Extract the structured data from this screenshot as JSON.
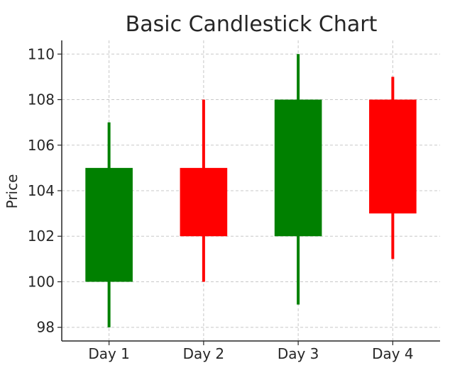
{
  "chart_data": {
    "type": "candlestick",
    "title": "Basic Candlestick Chart",
    "xlabel": "",
    "ylabel": "Price",
    "categories": [
      "Day 1",
      "Day 2",
      "Day 3",
      "Day 4"
    ],
    "open": [
      100,
      105,
      102,
      108
    ],
    "high": [
      107,
      108,
      110,
      109
    ],
    "low": [
      98,
      100,
      99,
      101
    ],
    "close": [
      105,
      102,
      108,
      103
    ],
    "ylim": [
      97.4,
      110.6
    ],
    "yticks": [
      98,
      100,
      102,
      104,
      106,
      108,
      110
    ],
    "grid": true,
    "colors": {
      "up": "#008000",
      "down": "#ff0000",
      "grid": "#c8c8c8",
      "axis": "#262626"
    }
  }
}
